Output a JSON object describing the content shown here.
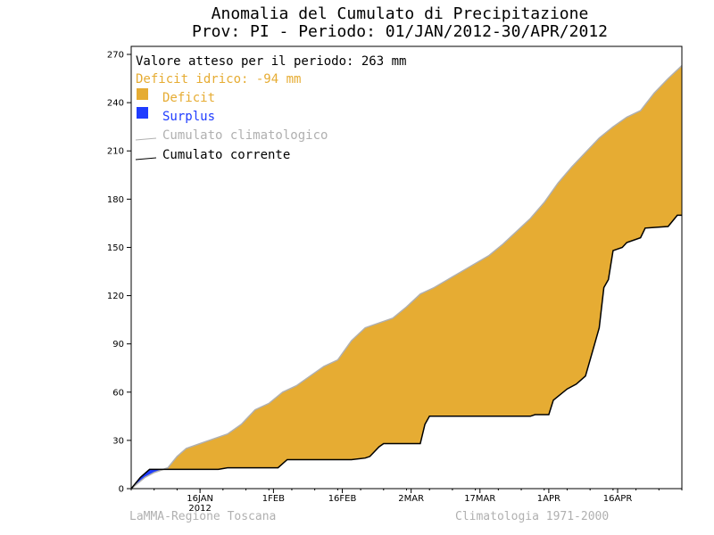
{
  "colors": {
    "deficit": "#e6ac33",
    "surplus": "#1f3cff",
    "climatologic": "#b0b0b0",
    "current": "#000000",
    "deficit_text": "#e6ac33",
    "surplus_text": "#1f3cff",
    "climatologic_text": "#b0b0b0",
    "current_text": "#000000",
    "footer": "#b0b0b0"
  },
  "footer": {
    "left": "LaMMA-Regione Toscana",
    "right": "Climatologia 1971-2000"
  },
  "chart_data": {
    "type": "area",
    "title": "Anomalia del Cumulato di Precipitazione",
    "subtitle": "Prov: PI - Periodo: 01/JAN/2012-30/APR/2012",
    "ylim": [
      0,
      275
    ],
    "xlim": [
      "2012-01-01",
      "2012-04-30"
    ],
    "yticks": [
      "0",
      "30",
      "60",
      "90",
      "120",
      "150",
      "180",
      "210",
      "240",
      "270"
    ],
    "xticks": [
      {
        "date": "2012-01-16",
        "label": "16JAN",
        "sublabel": "2012"
      },
      {
        "date": "2012-02-01",
        "label": "1FEB",
        "sublabel": ""
      },
      {
        "date": "2012-02-16",
        "label": "16FEB",
        "sublabel": ""
      },
      {
        "date": "2012-03-02",
        "label": "2MAR",
        "sublabel": ""
      },
      {
        "date": "2012-03-17",
        "label": "17MAR",
        "sublabel": ""
      },
      {
        "date": "2012-04-01",
        "label": "1APR",
        "sublabel": ""
      },
      {
        "date": "2012-04-16",
        "label": "16APR",
        "sublabel": ""
      }
    ],
    "annotations": {
      "expected": "Valore atteso per il periodo: 263 mm",
      "deficit": "Deficit idrico: -94 mm"
    },
    "legend": {
      "position": "top-left",
      "items": [
        {
          "key": "deficit",
          "label": "Deficit",
          "kind": "box"
        },
        {
          "key": "surplus",
          "label": "Surplus",
          "kind": "box"
        },
        {
          "key": "climatologic",
          "label": "Cumulato climatologico",
          "kind": "line"
        },
        {
          "key": "current",
          "label": "Cumulato corrente",
          "kind": "line"
        }
      ]
    },
    "series": [
      {
        "name": "Cumulato climatologico",
        "points": [
          [
            "2012-01-01",
            0
          ],
          [
            "2012-01-04",
            7
          ],
          [
            "2012-01-06",
            10
          ],
          [
            "2012-01-09",
            13
          ],
          [
            "2012-01-11",
            20
          ],
          [
            "2012-01-13",
            25
          ],
          [
            "2012-01-16",
            28
          ],
          [
            "2012-01-19",
            31
          ],
          [
            "2012-01-22",
            34
          ],
          [
            "2012-01-25",
            40
          ],
          [
            "2012-01-28",
            49
          ],
          [
            "2012-01-31",
            53
          ],
          [
            "2012-02-03",
            60
          ],
          [
            "2012-02-06",
            64
          ],
          [
            "2012-02-09",
            70
          ],
          [
            "2012-02-12",
            76
          ],
          [
            "2012-02-15",
            80
          ],
          [
            "2012-02-18",
            92
          ],
          [
            "2012-02-21",
            100
          ],
          [
            "2012-02-24",
            103
          ],
          [
            "2012-02-27",
            106
          ],
          [
            "2012-03-01",
            113
          ],
          [
            "2012-03-04",
            121
          ],
          [
            "2012-03-07",
            125
          ],
          [
            "2012-03-10",
            130
          ],
          [
            "2012-03-13",
            135
          ],
          [
            "2012-03-16",
            140
          ],
          [
            "2012-03-19",
            145
          ],
          [
            "2012-03-22",
            152
          ],
          [
            "2012-03-25",
            160
          ],
          [
            "2012-03-28",
            168
          ],
          [
            "2012-03-31",
            178
          ],
          [
            "2012-04-03",
            190
          ],
          [
            "2012-04-06",
            200
          ],
          [
            "2012-04-09",
            209
          ],
          [
            "2012-04-12",
            218
          ],
          [
            "2012-04-15",
            225
          ],
          [
            "2012-04-18",
            231
          ],
          [
            "2012-04-21",
            235
          ],
          [
            "2012-04-24",
            246
          ],
          [
            "2012-04-27",
            255
          ],
          [
            "2012-04-30",
            263
          ]
        ]
      },
      {
        "name": "Cumulato corrente",
        "points": [
          [
            "2012-01-01",
            0
          ],
          [
            "2012-01-03",
            7
          ],
          [
            "2012-01-05",
            12
          ],
          [
            "2012-01-20",
            12
          ],
          [
            "2012-01-22",
            13
          ],
          [
            "2012-02-02",
            13
          ],
          [
            "2012-02-04",
            18
          ],
          [
            "2012-02-18",
            18
          ],
          [
            "2012-02-21",
            19
          ],
          [
            "2012-02-22",
            20
          ],
          [
            "2012-02-24",
            26
          ],
          [
            "2012-02-25",
            28
          ],
          [
            "2012-03-04",
            28
          ],
          [
            "2012-03-05",
            40
          ],
          [
            "2012-03-06",
            45
          ],
          [
            "2012-03-28",
            45
          ],
          [
            "2012-03-29",
            46
          ],
          [
            "2012-04-01",
            46
          ],
          [
            "2012-04-02",
            55
          ],
          [
            "2012-04-05",
            62
          ],
          [
            "2012-04-07",
            65
          ],
          [
            "2012-04-09",
            70
          ],
          [
            "2012-04-11",
            90
          ],
          [
            "2012-04-12",
            100
          ],
          [
            "2012-04-13",
            125
          ],
          [
            "2012-04-14",
            130
          ],
          [
            "2012-04-15",
            148
          ],
          [
            "2012-04-17",
            150
          ],
          [
            "2012-04-18",
            153
          ],
          [
            "2012-04-21",
            156
          ],
          [
            "2012-04-22",
            162
          ],
          [
            "2012-04-27",
            163
          ],
          [
            "2012-04-29",
            170
          ],
          [
            "2012-04-30",
            170
          ]
        ]
      }
    ]
  }
}
